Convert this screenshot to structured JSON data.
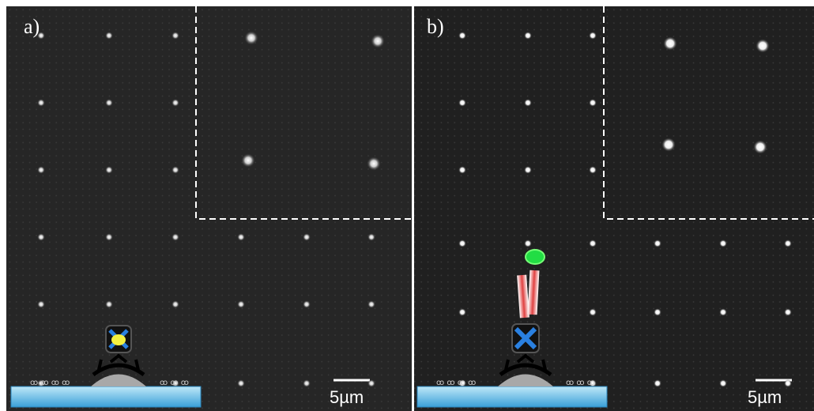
{
  "panels": [
    {
      "label": "a)",
      "scale_bar": "5µm"
    },
    {
      "label": "b)",
      "scale_bar": "5µm"
    }
  ]
}
